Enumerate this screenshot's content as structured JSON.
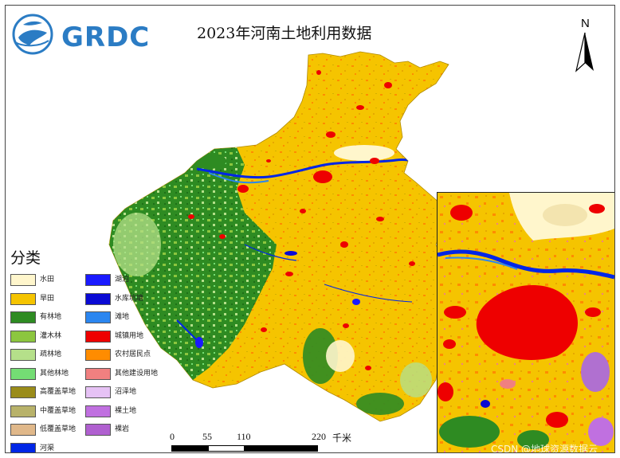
{
  "logo": {
    "text": "GRDC"
  },
  "title": "2023年河南土地利用数据",
  "north_arrow": {
    "label": "N"
  },
  "legend": {
    "title": "分类",
    "items": [
      {
        "label": "水田",
        "color": "#fff6cc"
      },
      {
        "label": "旱田",
        "color": "#f5c400"
      },
      {
        "label": "有林地",
        "color": "#2e8b22"
      },
      {
        "label": "灌木林",
        "color": "#8cc63f"
      },
      {
        "label": "疏林地",
        "color": "#b5e08a"
      },
      {
        "label": "其他林地",
        "color": "#74dd74"
      },
      {
        "label": "高覆盖草地",
        "color": "#9a8c1a"
      },
      {
        "label": "中覆盖草地",
        "color": "#b8b26a"
      },
      {
        "label": "低覆盖草地",
        "color": "#e0b88a"
      },
      {
        "label": "河渠",
        "color": "#0026e6"
      },
      {
        "label": "湖泊",
        "color": "#1a1aff"
      },
      {
        "label": "水库坑塘",
        "color": "#0a0ad4"
      },
      {
        "label": "滩地",
        "color": "#2b86f0"
      },
      {
        "label": "城镇用地",
        "color": "#ee0000"
      },
      {
        "label": "农村居民点",
        "color": "#ff8c00"
      },
      {
        "label": "其他建设用地",
        "color": "#f08080"
      },
      {
        "label": "沼泽地",
        "color": "#e6c2f5"
      },
      {
        "label": "裸土地",
        "color": "#c070e0"
      },
      {
        "label": "裸岩",
        "color": "#b060d0"
      }
    ]
  },
  "scale_bar": {
    "ticks": [
      "0",
      "55",
      "110",
      "220"
    ],
    "unit": "千米"
  },
  "watermark": "CSDN @地球资源数据云"
}
